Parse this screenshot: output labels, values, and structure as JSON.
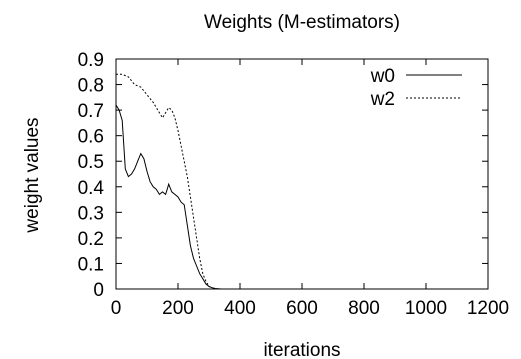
{
  "chart_data": {
    "type": "line",
    "title": "Weights (M-estimators)",
    "xlabel": "iterations",
    "ylabel": "weight values",
    "xlim": [
      0,
      1200
    ],
    "ylim": [
      0,
      0.9
    ],
    "xticks": [
      0,
      200,
      400,
      600,
      800,
      1000,
      1200
    ],
    "yticks": [
      0,
      0.1,
      0.2,
      0.3,
      0.4,
      0.5,
      0.6,
      0.7,
      0.8,
      0.9
    ],
    "xtick_labels": [
      "0",
      "200",
      "400",
      "600",
      "800",
      "1000",
      "1200"
    ],
    "ytick_labels": [
      "0",
      "0.1",
      "0.2",
      "0.3",
      "0.4",
      "0.5",
      "0.6",
      "0.7",
      "0.8",
      "0.9"
    ],
    "grid": false,
    "legend_position": "top-right",
    "series": [
      {
        "name": "w0",
        "style": "solid",
        "color": "#000000",
        "x": [
          0,
          10,
          20,
          30,
          40,
          50,
          60,
          70,
          80,
          90,
          100,
          110,
          120,
          130,
          140,
          150,
          160,
          165,
          170,
          180,
          190,
          200,
          210,
          220,
          230,
          240,
          250,
          260,
          270,
          280,
          290,
          300,
          310,
          320,
          340,
          400,
          500,
          600,
          700,
          800,
          900,
          1000
        ],
        "y": [
          0.72,
          0.7,
          0.66,
          0.47,
          0.44,
          0.45,
          0.47,
          0.5,
          0.53,
          0.51,
          0.46,
          0.42,
          0.4,
          0.39,
          0.37,
          0.38,
          0.37,
          0.39,
          0.41,
          0.38,
          0.37,
          0.36,
          0.34,
          0.33,
          0.25,
          0.17,
          0.12,
          0.09,
          0.06,
          0.04,
          0.02,
          0.01,
          0.005,
          0.002,
          0.0,
          0.0,
          0.0,
          0.0,
          0.0,
          0.0,
          0.0,
          0.0
        ]
      },
      {
        "name": "w2",
        "style": "dashed",
        "color": "#000000",
        "x": [
          0,
          20,
          40,
          60,
          80,
          100,
          120,
          140,
          150,
          160,
          170,
          180,
          190,
          200,
          210,
          220,
          230,
          240,
          250,
          260,
          270,
          280,
          290,
          300,
          310,
          320,
          340,
          400,
          500,
          600,
          700,
          800,
          900,
          1000
        ],
        "y": [
          0.84,
          0.84,
          0.83,
          0.8,
          0.79,
          0.76,
          0.73,
          0.69,
          0.67,
          0.69,
          0.71,
          0.7,
          0.67,
          0.62,
          0.56,
          0.5,
          0.44,
          0.36,
          0.28,
          0.2,
          0.12,
          0.06,
          0.03,
          0.01,
          0.004,
          0.0,
          0.0,
          0.0,
          0.0,
          0.0,
          0.0,
          0.0,
          0.0,
          0.0
        ]
      }
    ]
  }
}
